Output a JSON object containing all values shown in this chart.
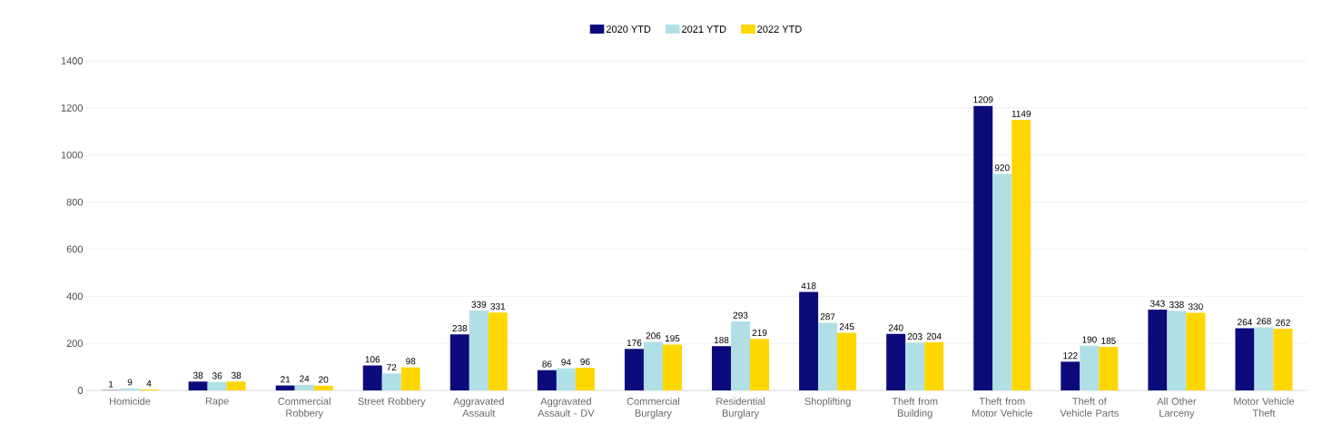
{
  "chart_data": {
    "type": "bar",
    "categories": [
      "Homicide",
      "Rape",
      "Commercial Robbery",
      "Street Robbery",
      "Aggravated Assault",
      "Aggravated Assault - DV",
      "Commercial Burglary",
      "Residential Burglary",
      "Shoplifting",
      "Theft from Building",
      "Theft from Motor Vehicle",
      "Theft of Vehicle Parts",
      "All Other Larceny",
      "Motor Vehicle Theft"
    ],
    "series": [
      {
        "name": "2020 YTD",
        "color": "#0b0b7c",
        "values": [
          1,
          38,
          21,
          106,
          238,
          86,
          176,
          188,
          418,
          240,
          1209,
          122,
          343,
          264
        ]
      },
      {
        "name": "2021 YTD",
        "color": "#b0e0e6",
        "values": [
          9,
          36,
          24,
          72,
          339,
          94,
          206,
          293,
          287,
          203,
          920,
          190,
          338,
          268
        ]
      },
      {
        "name": "2022 YTD",
        "color": "#ffd700",
        "values": [
          4,
          38,
          20,
          98,
          331,
          96,
          195,
          219,
          245,
          204,
          1149,
          185,
          330,
          262
        ]
      }
    ],
    "ylim": [
      0,
      1400
    ],
    "yticks": [
      0,
      200,
      400,
      600,
      800,
      1000,
      1200,
      1400
    ],
    "grid": "y",
    "legend": "top",
    "data_labels": true
  }
}
